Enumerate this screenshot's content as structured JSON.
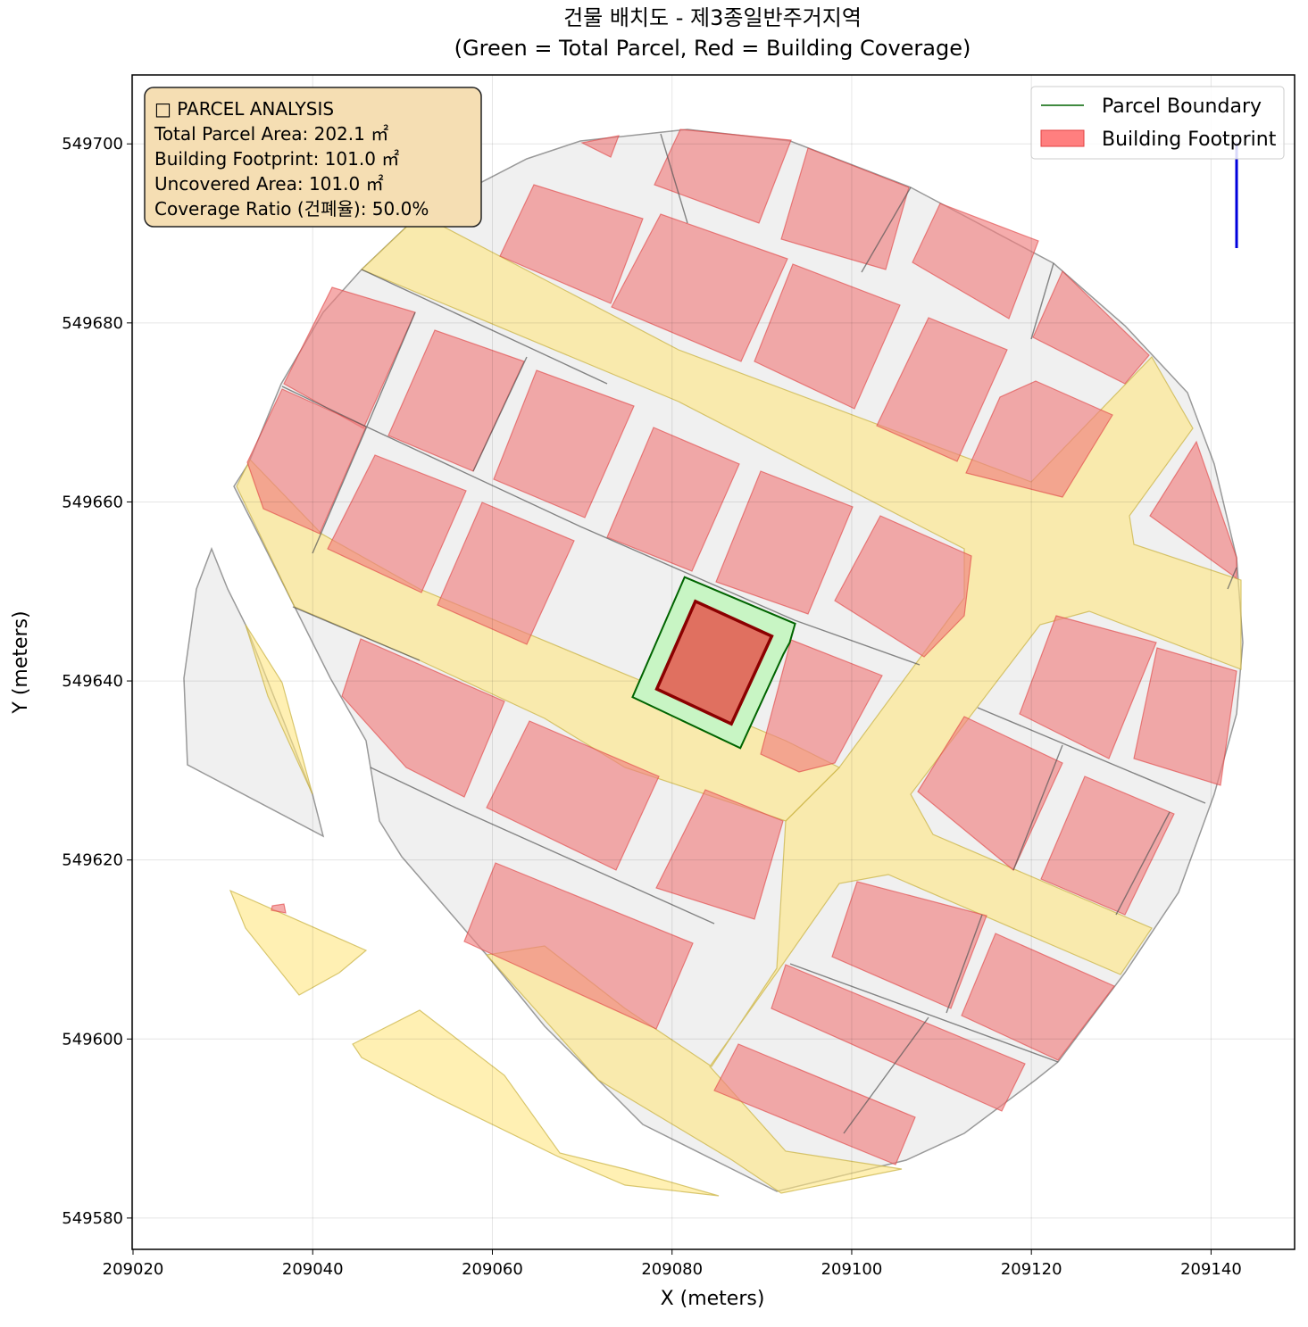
{
  "chart_data": {
    "type": "map",
    "title": "건물 배치도 - 제3종일반주거지역",
    "subtitle": "(Green = Total Parcel, Red = Building Coverage)",
    "x_label": "X (meters)",
    "y_label": "Y (meters)",
    "xlim": [
      209019.9,
      209149.3
    ],
    "ylim": [
      549576.5,
      549707.7
    ],
    "xticks": [
      209020,
      209040,
      209060,
      209080,
      209100,
      209120,
      209140
    ],
    "yticks": [
      549580,
      549600,
      549620,
      549640,
      549660,
      549680,
      549700
    ],
    "grid": true,
    "legend": "upper right",
    "series": [
      {
        "name": "Parcel Boundary",
        "color": "#006400",
        "fill": "#c8f5c4",
        "x": [
          209075.6,
          209081.4,
          209093.7,
          209093.1,
          209092.4,
          209087.6
        ],
        "y": [
          549638.2,
          549651.6,
          549646.4,
          549644.3,
          549643.0,
          549632.5
        ]
      },
      {
        "name": "Building Footprint",
        "color": "#ff7f7f",
        "edgecolor": "#8b0000",
        "fill": "#e07060",
        "x": [
          209078.3,
          209082.6,
          209091.1,
          209086.6
        ],
        "y": [
          549639.1,
          549648.9,
          549645.0,
          549635.2
        ]
      }
    ],
    "annotation": [
      "□ PARCEL ANALYSIS",
      "Total Parcel Area: 202.1 ㎡",
      "Building Footprint: 101.0 ㎡",
      "Uncovered Area: 101.0 ㎡",
      "Coverage Ratio (건폐율): 50.0%"
    ]
  }
}
